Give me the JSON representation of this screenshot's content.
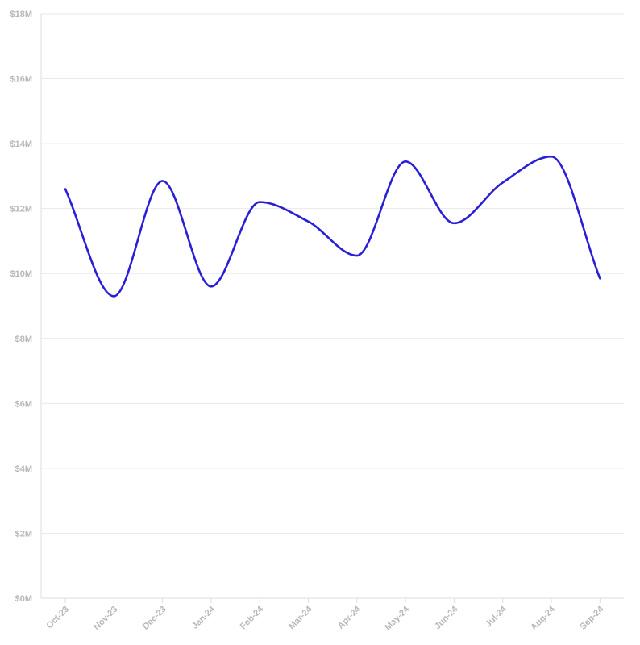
{
  "chart_data": {
    "type": "line",
    "title": "",
    "xlabel": "",
    "ylabel": "",
    "categories": [
      "Oct-23",
      "Nov-23",
      "Dec-23",
      "Jan-24",
      "Feb-24",
      "Mar-24",
      "Apr-24",
      "May-24",
      "Jun-24",
      "Jul-24",
      "Aug-24",
      "Sep-24"
    ],
    "series": [
      {
        "values": [
          12.6,
          9.3,
          12.85,
          9.6,
          12.2,
          11.6,
          10.55,
          13.45,
          11.55,
          12.8,
          13.6,
          9.85
        ],
        "color": "#2a1fd6"
      }
    ],
    "ylim": [
      0,
      18
    ],
    "y_ticks": [
      {
        "value": 0,
        "label": "$0M"
      },
      {
        "value": 2,
        "label": "$2M"
      },
      {
        "value": 4,
        "label": "$4M"
      },
      {
        "value": 6,
        "label": "$6M"
      },
      {
        "value": 8,
        "label": "$8M"
      },
      {
        "value": 10,
        "label": "$10M"
      },
      {
        "value": 12,
        "label": "$12M"
      },
      {
        "value": 14,
        "label": "$14M"
      },
      {
        "value": 16,
        "label": "$16M"
      },
      {
        "value": 18,
        "label": "$18M"
      }
    ],
    "grid": true,
    "legend": "none",
    "smooth": true,
    "x_tick_rotation": "diagonal"
  }
}
